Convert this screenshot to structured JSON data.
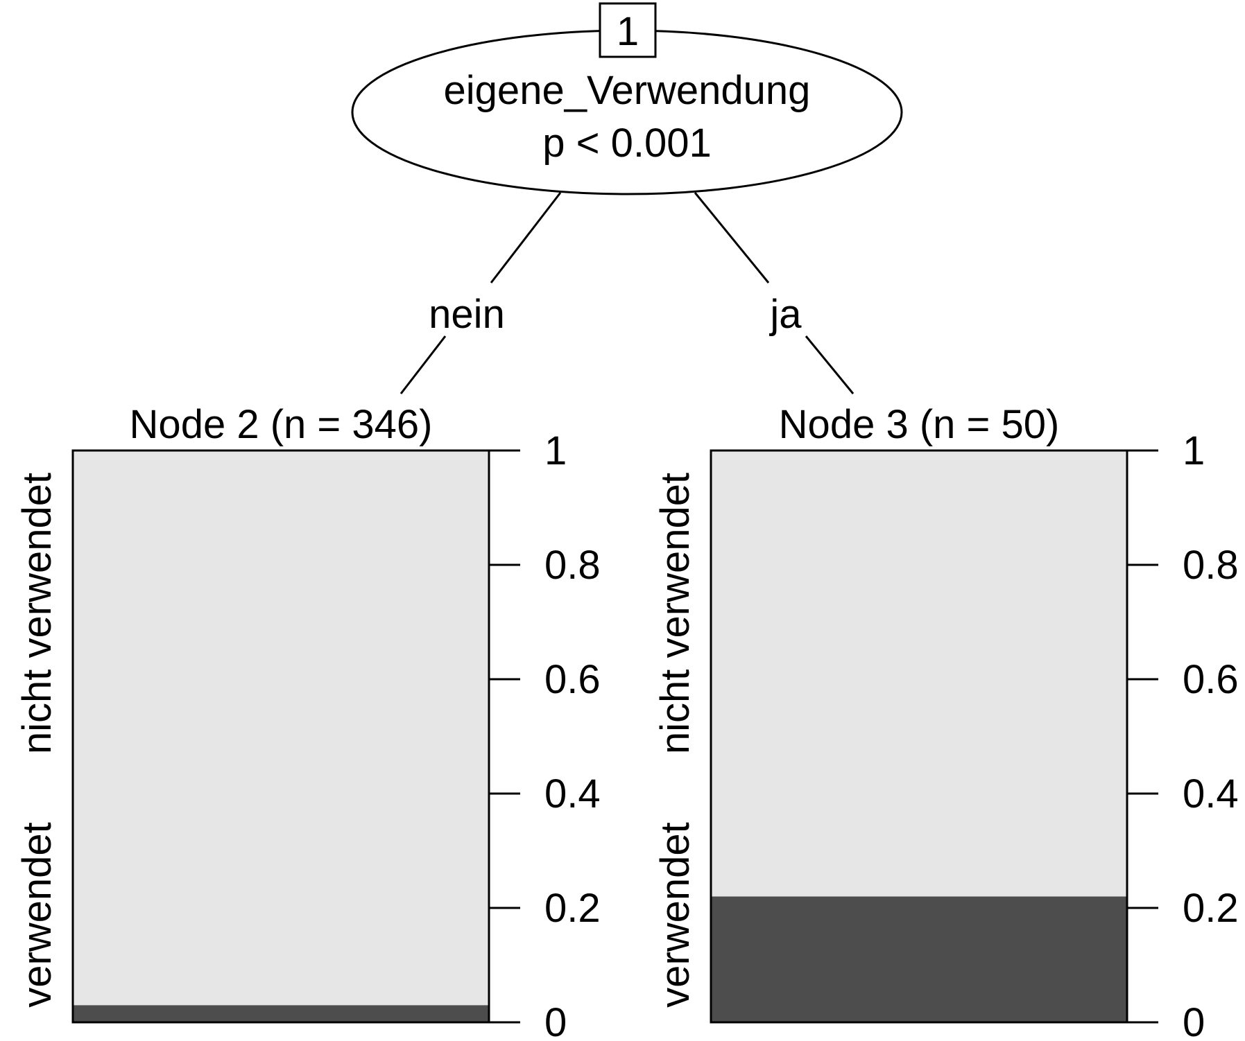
{
  "root": {
    "id": "1",
    "variable": "eigene_Verwendung",
    "pvalue": "p < 0.001"
  },
  "edges": {
    "left_label": "nein",
    "right_label": "ja"
  },
  "colors": {
    "verwendet": "#4d4d4d",
    "nicht_verwendet": "#e6e6e6",
    "stroke": "#000000"
  },
  "chart_data": [
    {
      "type": "bar",
      "title": "Node 2 (n = 346)",
      "categories": [
        "verwendet",
        "nicht verwendet"
      ],
      "values": [
        0.03,
        0.97
      ],
      "ylim": [
        0,
        1
      ],
      "yticks": [
        "0",
        "0.2",
        "0.4",
        "0.6",
        "0.8",
        "1"
      ]
    },
    {
      "type": "bar",
      "title": "Node 3 (n = 50)",
      "categories": [
        "verwendet",
        "nicht verwendet"
      ],
      "values": [
        0.22,
        0.78
      ],
      "ylim": [
        0,
        1
      ],
      "yticks": [
        "0",
        "0.2",
        "0.4",
        "0.6",
        "0.8",
        "1"
      ]
    }
  ]
}
